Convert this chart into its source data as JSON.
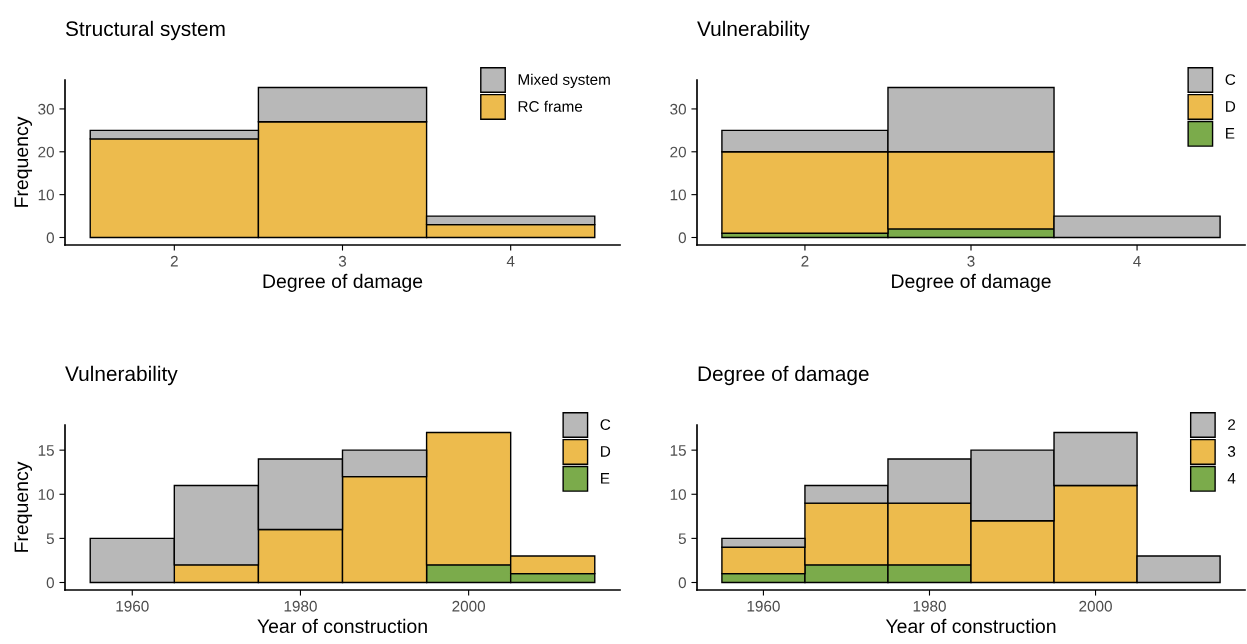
{
  "chart_data": [
    {
      "type": "bar",
      "title": "Structural system",
      "xlabel": "Degree of damage",
      "ylabel": "Frequency",
      "stacked": true,
      "x": [
        2,
        3,
        4
      ],
      "xlim": [
        1.35,
        4.65
      ],
      "xticks": [
        2,
        3,
        4
      ],
      "ylim": [
        -1.75,
        36.75
      ],
      "yticks": [
        0,
        10,
        20,
        30
      ],
      "legend": "top right",
      "series": [
        {
          "name": "RC frame",
          "color": "#edbb4d",
          "values": [
            23,
            27,
            3
          ]
        },
        {
          "name": "Mixed system",
          "color": "#b8b8b8",
          "values": [
            2,
            8,
            2
          ]
        }
      ]
    },
    {
      "type": "bar",
      "title": "Vulnerability",
      "xlabel": "Degree of damage",
      "stacked": true,
      "x": [
        2,
        3,
        4
      ],
      "xlim": [
        1.35,
        4.65
      ],
      "xticks": [
        2,
        3,
        4
      ],
      "ylim": [
        -1.75,
        36.75
      ],
      "yticks": [
        0,
        10,
        20,
        30
      ],
      "legend": "top right",
      "series": [
        {
          "name": "E",
          "color": "#7bab4b",
          "values": [
            1,
            2,
            0
          ]
        },
        {
          "name": "D",
          "color": "#edbb4d",
          "values": [
            19,
            18,
            0
          ]
        },
        {
          "name": "C",
          "color": "#b8b8b8",
          "values": [
            5,
            15,
            5
          ]
        }
      ]
    },
    {
      "type": "bar",
      "title": "Vulnerability",
      "xlabel": "Year of construction",
      "ylabel": "Frequency",
      "stacked": true,
      "x": [
        1960,
        1970,
        1980,
        1990,
        2000,
        2010
      ],
      "xlim": [
        1952,
        2018
      ],
      "xticks": [
        1960,
        1980,
        2000
      ],
      "ylim": [
        -0.85,
        17.85
      ],
      "yticks": [
        0,
        5,
        10,
        15
      ],
      "legend": "top right",
      "series": [
        {
          "name": "E",
          "color": "#7bab4b",
          "values": [
            0,
            0,
            0,
            0,
            2,
            1
          ]
        },
        {
          "name": "D",
          "color": "#edbb4d",
          "values": [
            0,
            2,
            6,
            12,
            15,
            2
          ]
        },
        {
          "name": "C",
          "color": "#b8b8b8",
          "values": [
            5,
            9,
            8,
            3,
            0,
            0
          ]
        }
      ]
    },
    {
      "type": "bar",
      "title": "Degree of damage",
      "xlabel": "Year of construction",
      "stacked": true,
      "x": [
        1960,
        1970,
        1980,
        1990,
        2000,
        2010
      ],
      "xlim": [
        1952,
        2018
      ],
      "xticks": [
        1960,
        1980,
        2000
      ],
      "ylim": [
        -0.85,
        17.85
      ],
      "yticks": [
        0,
        5,
        10,
        15
      ],
      "legend": "top right",
      "series": [
        {
          "name": "4",
          "color": "#7bab4b",
          "values": [
            1,
            2,
            2,
            0,
            0,
            0
          ]
        },
        {
          "name": "3",
          "color": "#edbb4d",
          "values": [
            3,
            7,
            7,
            7,
            11,
            0
          ]
        },
        {
          "name": "2",
          "color": "#b8b8b8",
          "values": [
            1,
            2,
            5,
            8,
            6,
            3
          ]
        }
      ]
    }
  ]
}
